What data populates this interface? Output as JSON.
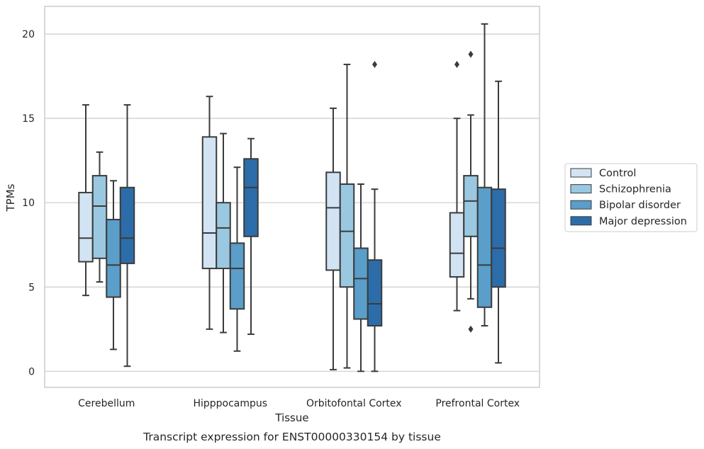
{
  "chart_data": {
    "type": "box",
    "caption": "Transcript expression for ENST00000330154 by tissue",
    "xlabel": "Tissue",
    "ylabel": "TPMs",
    "ylim": [
      -1,
      21.6
    ],
    "yticks": [
      0,
      5,
      10,
      15,
      20
    ],
    "grid": "horizontal",
    "legend_placement": "right",
    "categories": [
      "Cerebellum",
      "Hipppocampus",
      "Orbitofontal Cortex",
      "Prefrontal Cortex"
    ],
    "series": [
      {
        "name": "Control",
        "color": "#d2e3f3",
        "boxes": [
          {
            "whislo": 4.5,
            "q1": 6.5,
            "med": 7.9,
            "q3": 10.6,
            "whishi": 15.8,
            "fliers": []
          },
          {
            "whislo": 2.5,
            "q1": 6.1,
            "med": 8.2,
            "q3": 13.9,
            "whishi": 16.3,
            "fliers": []
          },
          {
            "whislo": 0.1,
            "q1": 6.0,
            "med": 9.7,
            "q3": 11.8,
            "whishi": 15.6,
            "fliers": []
          },
          {
            "whislo": 3.6,
            "q1": 5.6,
            "med": 7.0,
            "q3": 9.4,
            "whishi": 15.0,
            "fliers": [
              18.2
            ]
          }
        ]
      },
      {
        "name": "Schizophrenia",
        "color": "#9ac8e0",
        "boxes": [
          {
            "whislo": 5.3,
            "q1": 6.7,
            "med": 9.8,
            "q3": 11.6,
            "whishi": 13.0,
            "fliers": []
          },
          {
            "whislo": 2.3,
            "q1": 6.1,
            "med": 8.5,
            "q3": 10.0,
            "whishi": 14.1,
            "fliers": []
          },
          {
            "whislo": 0.2,
            "q1": 5.0,
            "med": 8.3,
            "q3": 11.1,
            "whishi": 18.2,
            "fliers": []
          },
          {
            "whislo": 4.3,
            "q1": 8.0,
            "med": 10.1,
            "q3": 11.6,
            "whishi": 15.2,
            "fliers": [
              2.5,
              18.8
            ]
          }
        ]
      },
      {
        "name": "Bipolar disorder",
        "color": "#5a9ec9",
        "boxes": [
          {
            "whislo": 1.3,
            "q1": 4.4,
            "med": 6.3,
            "q3": 9.0,
            "whishi": 11.3,
            "fliers": []
          },
          {
            "whislo": 1.2,
            "q1": 3.7,
            "med": 6.1,
            "q3": 7.6,
            "whishi": 12.1,
            "fliers": []
          },
          {
            "whislo": 0.0,
            "q1": 3.1,
            "med": 5.5,
            "q3": 7.3,
            "whishi": 11.1,
            "fliers": []
          },
          {
            "whislo": 2.7,
            "q1": 3.8,
            "med": 6.3,
            "q3": 10.9,
            "whishi": 20.6,
            "fliers": []
          }
        ]
      },
      {
        "name": "Major depression",
        "color": "#2c6da9",
        "boxes": [
          {
            "whislo": 0.3,
            "q1": 6.4,
            "med": 7.9,
            "q3": 10.9,
            "whishi": 15.8,
            "fliers": []
          },
          {
            "whislo": 2.2,
            "q1": 8.0,
            "med": 10.9,
            "q3": 12.6,
            "whishi": 13.8,
            "fliers": []
          },
          {
            "whislo": 0.0,
            "q1": 2.7,
            "med": 4.0,
            "q3": 6.6,
            "whishi": 10.8,
            "fliers": [
              18.2
            ]
          },
          {
            "whislo": 0.5,
            "q1": 5.0,
            "med": 7.3,
            "q3": 10.8,
            "whishi": 17.2,
            "fliers": []
          }
        ]
      }
    ]
  }
}
